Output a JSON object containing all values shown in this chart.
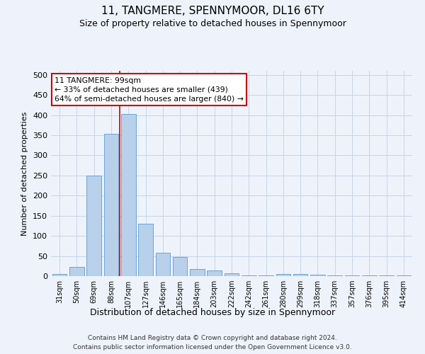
{
  "title": "11, TANGMERE, SPENNYMOOR, DL16 6TY",
  "subtitle": "Size of property relative to detached houses in Spennymoor",
  "xlabel": "Distribution of detached houses by size in Spennymoor",
  "ylabel": "Number of detached properties",
  "categories": [
    "31sqm",
    "50sqm",
    "69sqm",
    "88sqm",
    "107sqm",
    "127sqm",
    "146sqm",
    "165sqm",
    "184sqm",
    "203sqm",
    "222sqm",
    "242sqm",
    "261sqm",
    "280sqm",
    "299sqm",
    "318sqm",
    "337sqm",
    "357sqm",
    "376sqm",
    "395sqm",
    "414sqm"
  ],
  "values": [
    5,
    22,
    250,
    353,
    403,
    130,
    58,
    48,
    17,
    14,
    7,
    1,
    1,
    5,
    5,
    4,
    1,
    1,
    1,
    2,
    2
  ],
  "bar_color": "#b8d0ea",
  "bar_edge_color": "#5b9bd5",
  "vline_x": 3.5,
  "vline_color": "#cc0000",
  "annotation_text": "11 TANGMERE: 99sqm\n← 33% of detached houses are smaller (439)\n64% of semi-detached houses are larger (840) →",
  "annotation_box_color": "#ffffff",
  "annotation_box_edge": "#cc0000",
  "ylim": [
    0,
    510
  ],
  "yticks": [
    0,
    50,
    100,
    150,
    200,
    250,
    300,
    350,
    400,
    450,
    500
  ],
  "footer_line1": "Contains HM Land Registry data © Crown copyright and database right 2024.",
  "footer_line2": "Contains public sector information licensed under the Open Government Licence v3.0.",
  "bg_color": "#eef3fb",
  "grid_color": "#c5d5e8"
}
